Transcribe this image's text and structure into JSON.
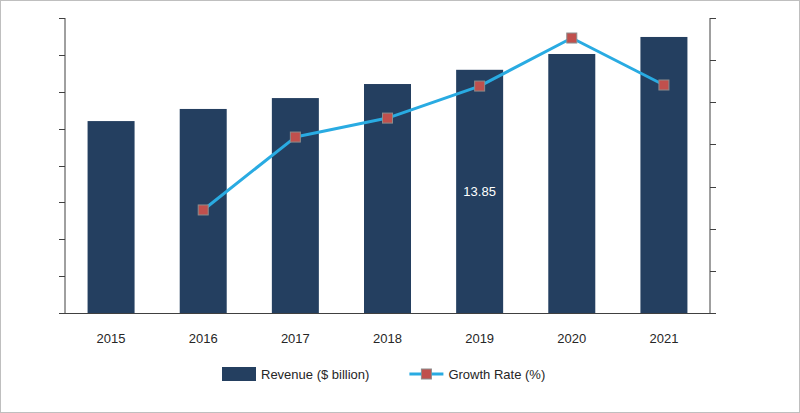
{
  "chart_data": {
    "type": "bar",
    "categories": [
      "2015",
      "2016",
      "2017",
      "2018",
      "2019",
      "2020",
      "2021"
    ],
    "series": [
      {
        "name": "Revenue ($ billion)",
        "type": "bar",
        "color": "#243f60",
        "values": [
          10.93,
          11.62,
          12.24,
          13.04,
          13.85,
          14.75,
          15.72
        ],
        "value_labels": [
          null,
          null,
          null,
          null,
          "13.85",
          null,
          null
        ]
      },
      {
        "name": "Growth Rate (%)",
        "type": "line",
        "axis": "y2",
        "color": "#29abe2",
        "marker": "square",
        "values": [
          null,
          4.89,
          8.35,
          9.25,
          10.77,
          13.05,
          10.82
        ]
      }
    ],
    "ylim": [
      0,
      16.8
    ],
    "yticks": [
      0,
      2.1,
      4.2,
      6.3,
      8.4,
      10.5,
      12.6,
      14.7,
      16.8
    ],
    "y2lim": [
      0,
      14
    ],
    "y2ticks": [
      0,
      2,
      4,
      6,
      8,
      10,
      12,
      14
    ],
    "tick_labels": "x",
    "grid": false,
    "legend": "bottom"
  }
}
